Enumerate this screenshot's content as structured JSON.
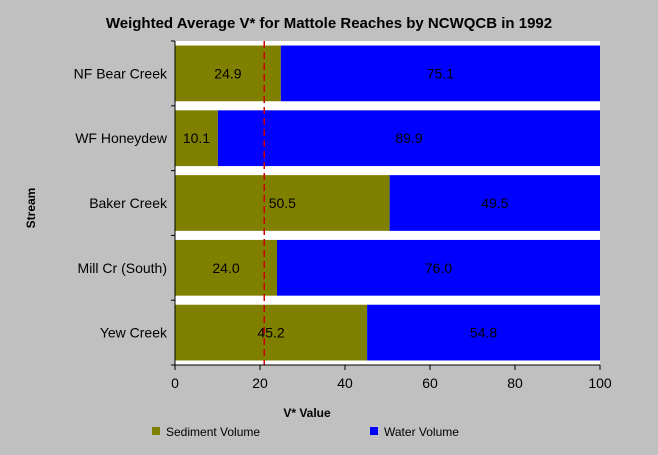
{
  "chart_data": {
    "type": "bar",
    "orientation": "horizontal",
    "stacked": true,
    "title": "Weighted Average V* for Mattole Reaches by NCWQCB in 1992",
    "xlabel": "V* Value",
    "ylabel": "Stream",
    "xlim": [
      0,
      100
    ],
    "xticks": [
      "0",
      "20",
      "40",
      "60",
      "80",
      "100"
    ],
    "categories": [
      "NF Bear Creek",
      "WF Honeydew",
      "Baker Creek",
      "Mill Cr (South)",
      "Yew Creek"
    ],
    "series": [
      {
        "name": "Sediment Volume",
        "color": "#808000",
        "values": [
          24.9,
          10.1,
          50.5,
          24.0,
          45.2
        ],
        "labels": [
          "24.9",
          "10.1",
          "50.5",
          "24.0",
          "45.2"
        ]
      },
      {
        "name": "Water Volume",
        "color": "#0000ff",
        "values": [
          75.1,
          89.9,
          49.5,
          76.0,
          54.8
        ],
        "labels": [
          "75.1",
          "89.9",
          "49.5",
          "76.0",
          "54.8"
        ]
      }
    ],
    "reference_line": {
      "x": 21,
      "color": "#cc0000",
      "style": "dashed"
    },
    "plot_background": "#ffffff",
    "page_background": "#c0c0c0",
    "grid": false,
    "legend_position": "bottom"
  }
}
